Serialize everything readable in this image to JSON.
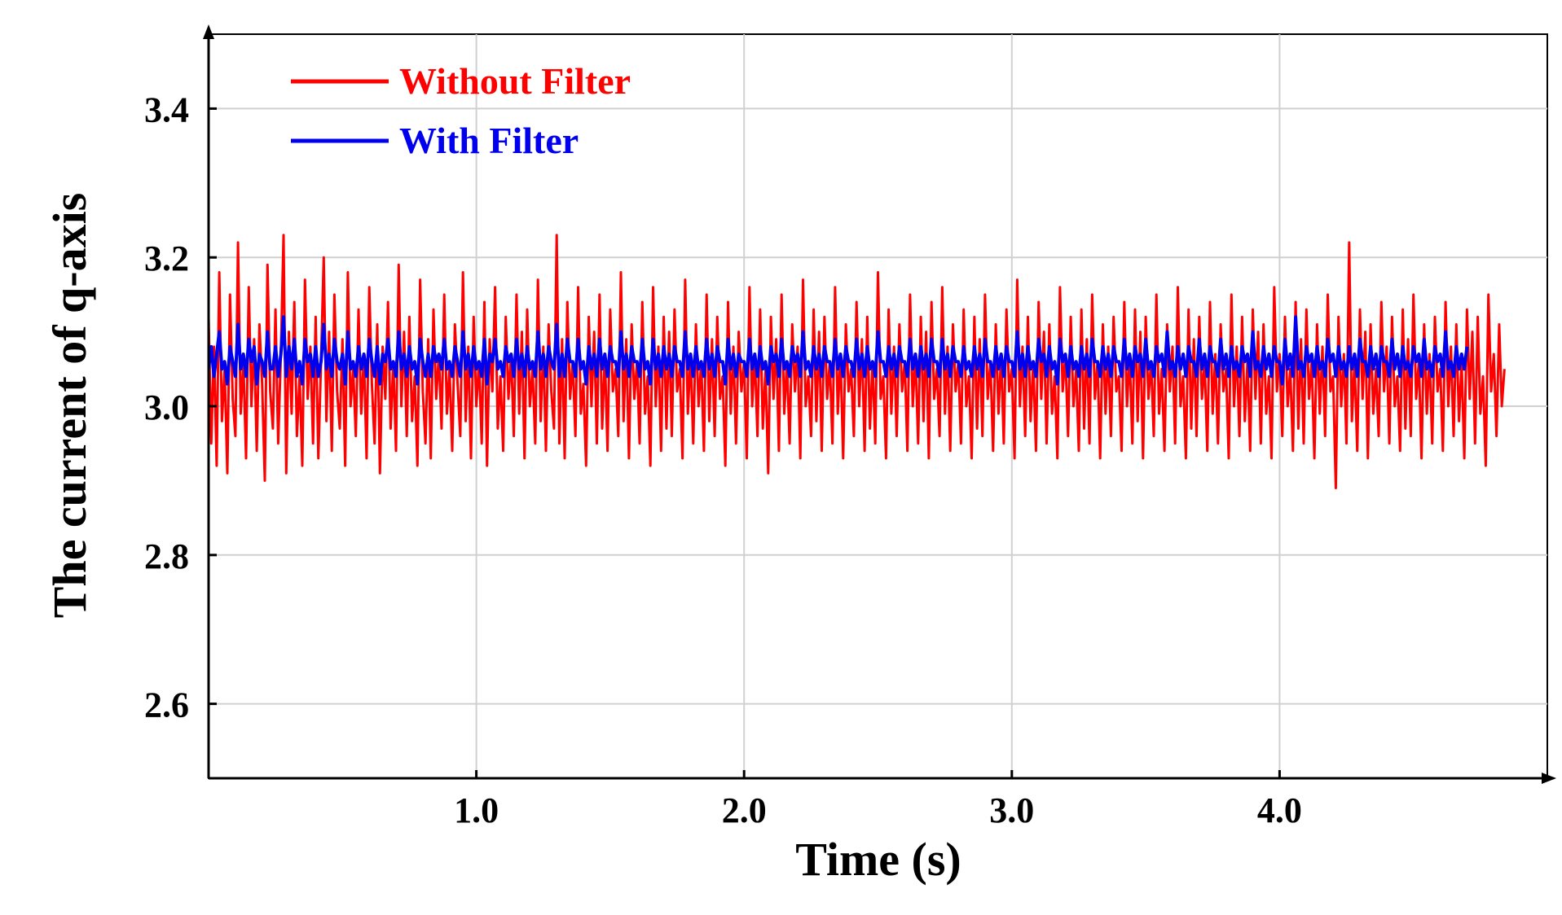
{
  "chart_data": {
    "type": "line",
    "title": "",
    "xlabel": "Time (s)",
    "ylabel": "The current of q-axis",
    "xlim": [
      0,
      5.0
    ],
    "ylim": [
      2.5,
      3.5
    ],
    "grid": true,
    "legend_position": "top-left",
    "x_ticks": [
      1.0,
      2.0,
      3.0,
      4.0
    ],
    "x_tick_labels": [
      "1.0",
      "2.0",
      "3.0",
      "4.0"
    ],
    "y_ticks": [
      2.6,
      2.8,
      3.0,
      3.2,
      3.4
    ],
    "y_tick_labels": [
      "2.6",
      "2.8",
      "3.0",
      "3.2",
      "3.4"
    ],
    "series": [
      {
        "name": "Without Filter",
        "color": "#ff0000",
        "x_start": 0,
        "x_step": 0.01,
        "y": [
          3.12,
          2.95,
          3.08,
          2.92,
          3.18,
          2.98,
          3.05,
          2.91,
          3.15,
          3.01,
          2.96,
          3.22,
          2.99,
          3.06,
          2.93,
          3.16,
          3.0,
          3.09,
          2.94,
          3.11,
          3.03,
          2.9,
          3.19,
          3.02,
          2.97,
          3.13,
          2.95,
          3.07,
          3.23,
          2.91,
          3.1,
          2.99,
          3.14,
          2.96,
          3.04,
          2.92,
          3.17,
          3.01,
          3.08,
          2.95,
          3.12,
          2.93,
          3.06,
          3.2,
          2.98,
          3.1,
          2.94,
          3.15,
          3.02,
          2.97,
          3.09,
          2.92,
          3.18,
          3.0,
          3.05,
          2.96,
          3.13,
          2.99,
          3.07,
          2.93,
          3.16,
          3.03,
          2.95,
          3.11,
          2.91,
          3.08,
          3.01,
          3.14,
          2.97,
          3.06,
          2.94,
          3.19,
          3.0,
          3.1,
          2.96,
          3.12,
          2.98,
          3.04,
          2.92,
          3.17,
          3.02,
          2.95,
          3.09,
          2.93,
          3.13,
          3.01,
          3.07,
          2.97,
          3.15,
          2.99,
          3.05,
          2.94,
          3.11,
          3.03,
          2.96,
          3.18,
          2.98,
          3.08,
          2.93,
          3.12,
          3.0,
          3.06,
          2.95,
          3.14,
          2.92,
          3.09,
          3.02,
          3.16,
          2.97,
          3.04,
          2.94,
          3.12,
          3.01,
          3.07,
          2.96,
          3.15,
          2.99,
          3.1,
          2.93,
          3.13,
          3.0,
          3.05,
          2.95,
          3.17,
          2.98,
          3.08,
          2.94,
          3.11,
          3.02,
          2.97,
          3.23,
          2.95,
          3.09,
          2.93,
          3.14,
          3.01,
          3.06,
          2.96,
          3.16,
          2.99,
          3.03,
          2.92,
          3.12,
          3.0,
          3.1,
          2.95,
          3.15,
          2.97,
          3.07,
          2.94,
          3.13,
          3.02,
          3.05,
          2.96,
          3.18,
          2.98,
          3.09,
          2.93,
          3.11,
          3.01,
          3.06,
          2.95,
          3.14,
          2.99,
          3.04,
          2.92,
          3.16,
          3.0,
          3.08,
          2.94,
          3.12,
          2.97,
          3.1,
          2.96,
          3.13,
          3.02,
          3.05,
          2.93,
          3.17,
          2.99,
          3.07,
          2.95,
          3.11,
          3.0,
          3.06,
          2.94,
          3.15,
          2.98,
          3.09,
          2.96,
          3.12,
          3.01,
          3.04,
          2.92,
          3.14,
          2.99,
          3.08,
          2.95,
          3.1,
          3.02,
          3.06,
          2.93,
          3.16,
          3.0,
          3.07,
          2.96,
          3.13,
          2.97,
          3.05,
          2.91,
          3.12,
          3.01,
          3.09,
          2.94,
          3.15,
          2.99,
          3.06,
          2.95,
          3.11,
          3.02,
          3.08,
          2.93,
          3.17,
          3.0,
          3.04,
          2.96,
          3.13,
          2.98,
          3.1,
          2.94,
          3.12,
          3.01,
          3.06,
          2.95,
          3.16,
          2.99,
          3.07,
          2.93,
          3.11,
          3.02,
          3.05,
          2.96,
          3.14,
          3.0,
          3.09,
          2.94,
          3.12,
          2.97,
          3.06,
          2.95,
          3.18,
          3.01,
          3.04,
          2.93,
          3.13,
          2.99,
          3.08,
          2.96,
          3.11,
          3.02,
          3.06,
          2.94,
          3.15,
          3.0,
          3.07,
          2.95,
          3.12,
          2.98,
          3.1,
          2.93,
          3.14,
          3.01,
          3.05,
          2.96,
          3.16,
          2.99,
          3.08,
          2.94,
          3.11,
          3.02,
          3.06,
          2.95,
          3.13,
          3.0,
          3.04,
          2.93,
          3.12,
          2.97,
          3.09,
          2.96,
          3.15,
          3.01,
          3.06,
          2.94,
          3.11,
          2.99,
          3.07,
          2.95,
          3.13,
          3.02,
          3.05,
          2.93,
          3.17,
          3.0,
          3.08,
          2.96,
          3.12,
          2.98,
          3.06,
          2.94,
          3.14,
          3.01,
          3.1,
          2.95,
          3.11,
          2.99,
          3.04,
          2.93,
          3.16,
          3.02,
          3.07,
          2.96,
          3.12,
          3.0,
          3.05,
          2.94,
          3.13,
          2.97,
          3.09,
          2.95,
          3.15,
          3.01,
          3.06,
          2.93,
          3.11,
          2.99,
          3.08,
          2.96,
          3.12,
          3.02,
          3.04,
          2.94,
          3.14,
          3.0,
          3.07,
          2.95,
          3.13,
          2.98,
          3.1,
          2.93,
          3.12,
          3.01,
          3.06,
          2.96,
          3.15,
          2.99,
          3.05,
          2.94,
          3.11,
          3.02,
          3.08,
          2.95,
          3.16,
          3.0,
          3.04,
          2.93,
          3.13,
          2.97,
          3.09,
          2.96,
          3.12,
          3.01,
          3.06,
          2.94,
          3.14,
          2.99,
          3.07,
          2.95,
          3.11,
          3.02,
          3.05,
          2.93,
          3.15,
          3.0,
          3.08,
          2.96,
          3.12,
          2.98,
          3.06,
          2.94,
          3.13,
          3.01,
          3.1,
          2.95,
          3.11,
          2.99,
          3.04,
          2.93,
          3.16,
          3.02,
          3.07,
          2.96,
          3.12,
          3.0,
          3.05,
          2.94,
          3.14,
          2.97,
          3.09,
          2.95,
          3.13,
          3.01,
          3.06,
          2.93,
          3.11,
          2.99,
          3.08,
          2.96,
          3.15,
          3.02,
          3.04,
          2.89,
          3.12,
          3.0,
          3.07,
          2.95,
          3.22,
          2.98,
          3.06,
          2.94,
          3.13,
          3.01,
          3.1,
          2.93,
          3.11,
          2.99,
          3.05,
          2.96,
          3.14,
          3.02,
          3.08,
          2.95,
          3.12,
          3.0,
          3.04,
          2.94,
          3.13,
          2.97,
          3.09,
          2.96,
          3.15,
          3.01,
          3.06,
          2.93,
          3.11,
          2.99,
          3.07,
          2.95,
          3.12,
          3.02,
          3.05,
          2.94,
          3.14,
          3.0,
          3.08,
          2.96,
          3.11,
          2.98,
          3.06,
          2.93,
          3.13,
          3.01,
          3.1,
          2.95,
          3.12,
          2.99,
          3.04,
          2.92,
          3.15,
          3.02,
          3.07,
          2.96,
          3.11,
          3.0,
          3.05
        ]
      },
      {
        "name": "With Filter",
        "color": "#0000ee",
        "x_start": 0,
        "x_step": 0.01,
        "y": [
          3.05,
          3.08,
          3.04,
          3.07,
          3.1,
          3.05,
          3.06,
          3.03,
          3.08,
          3.06,
          3.04,
          3.11,
          3.05,
          3.07,
          3.04,
          3.09,
          3.06,
          3.08,
          3.03,
          3.07,
          3.06,
          3.04,
          3.1,
          3.05,
          3.05,
          3.08,
          3.04,
          3.07,
          3.12,
          3.04,
          3.08,
          3.05,
          3.09,
          3.04,
          3.06,
          3.03,
          3.09,
          3.06,
          3.07,
          3.04,
          3.08,
          3.04,
          3.06,
          3.11,
          3.05,
          3.07,
          3.04,
          3.09,
          3.06,
          3.05,
          3.07,
          3.03,
          3.1,
          3.05,
          3.06,
          3.04,
          3.08,
          3.05,
          3.07,
          3.04,
          3.09,
          3.06,
          3.04,
          3.08,
          3.03,
          3.07,
          3.06,
          3.09,
          3.05,
          3.06,
          3.04,
          3.1,
          3.05,
          3.07,
          3.04,
          3.08,
          3.05,
          3.06,
          3.03,
          3.09,
          3.06,
          3.04,
          3.07,
          3.04,
          3.08,
          3.06,
          3.07,
          3.05,
          3.09,
          3.05,
          3.06,
          3.04,
          3.08,
          3.06,
          3.04,
          3.1,
          3.05,
          3.07,
          3.04,
          3.08,
          3.05,
          3.06,
          3.04,
          3.09,
          3.03,
          3.07,
          3.06,
          3.09,
          3.05,
          3.06,
          3.04,
          3.08,
          3.06,
          3.07,
          3.04,
          3.09,
          3.05,
          3.07,
          3.04,
          3.08,
          3.05,
          3.06,
          3.04,
          3.1,
          3.05,
          3.07,
          3.04,
          3.08,
          3.06,
          3.05,
          3.11,
          3.04,
          3.07,
          3.04,
          3.09,
          3.06,
          3.06,
          3.04,
          3.09,
          3.05,
          3.06,
          3.03,
          3.08,
          3.05,
          3.07,
          3.04,
          3.09,
          3.05,
          3.07,
          3.04,
          3.08,
          3.06,
          3.06,
          3.04,
          3.1,
          3.05,
          3.07,
          3.04,
          3.08,
          3.06,
          3.06,
          3.04,
          3.09,
          3.05,
          3.06,
          3.03,
          3.09,
          3.05,
          3.07,
          3.04,
          3.08,
          3.05,
          3.07,
          3.04,
          3.08,
          3.06,
          3.06,
          3.04,
          3.1,
          3.05,
          3.07,
          3.04,
          3.08,
          3.05,
          3.06,
          3.04,
          3.09,
          3.05,
          3.07,
          3.04,
          3.08,
          3.06,
          3.06,
          3.03,
          3.09,
          3.05,
          3.07,
          3.04,
          3.07,
          3.06,
          3.06,
          3.04,
          3.09,
          3.05,
          3.07,
          3.04,
          3.08,
          3.05,
          3.06,
          3.03,
          3.08,
          3.06,
          3.07,
          3.04,
          3.09,
          3.05,
          3.06,
          3.04,
          3.08,
          3.06,
          3.07,
          3.04,
          3.1,
          3.05,
          3.06,
          3.04,
          3.08,
          3.05,
          3.07,
          3.04,
          3.08,
          3.06,
          3.06,
          3.04,
          3.09,
          3.05,
          3.07,
          3.04,
          3.08,
          3.06,
          3.06,
          3.04,
          3.09,
          3.05,
          3.07,
          3.04,
          3.08,
          3.05,
          3.06,
          3.04,
          3.1,
          3.06,
          3.06,
          3.04,
          3.08,
          3.05,
          3.07,
          3.04,
          3.08,
          3.06,
          3.06,
          3.04,
          3.09,
          3.05,
          3.07,
          3.04,
          3.08,
          3.05,
          3.07,
          3.04,
          3.09,
          3.06,
          3.06,
          3.04,
          3.09,
          3.05,
          3.07,
          3.04,
          3.08,
          3.06,
          3.06,
          3.04,
          3.08,
          3.05,
          3.06,
          3.04,
          3.08,
          3.05,
          3.07,
          3.04,
          3.09,
          3.06,
          3.06,
          3.04,
          3.08,
          3.05,
          3.07,
          3.04,
          3.08,
          3.06,
          3.06,
          3.04,
          3.1,
          3.05,
          3.07,
          3.04,
          3.08,
          3.05,
          3.06,
          3.04,
          3.09,
          3.06,
          3.07,
          3.04,
          3.08,
          3.05,
          3.06,
          3.03,
          3.09,
          3.06,
          3.07,
          3.04,
          3.08,
          3.05,
          3.06,
          3.04,
          3.08,
          3.05,
          3.07,
          3.04,
          3.09,
          3.06,
          3.06,
          3.04,
          3.08,
          3.05,
          3.07,
          3.04,
          3.08,
          3.06,
          3.06,
          3.04,
          3.09,
          3.05,
          3.07,
          3.04,
          3.08,
          3.06,
          3.07,
          3.04,
          3.09,
          3.05,
          3.06,
          3.04,
          3.08,
          3.06,
          3.07,
          3.04,
          3.1,
          3.05,
          3.06,
          3.04,
          3.08,
          3.05,
          3.07,
          3.04,
          3.08,
          3.06,
          3.06,
          3.04,
          3.09,
          3.05,
          3.07,
          3.04,
          3.08,
          3.06,
          3.06,
          3.04,
          3.09,
          3.05,
          3.07,
          3.04,
          3.08,
          3.05,
          3.06,
          3.04,
          3.08,
          3.06,
          3.07,
          3.04,
          3.1,
          3.05,
          3.06,
          3.04,
          3.08,
          3.05,
          3.07,
          3.04,
          3.08,
          3.06,
          3.06,
          3.03,
          3.09,
          3.05,
          3.07,
          3.04,
          3.12,
          3.05,
          3.06,
          3.04,
          3.08,
          3.06,
          3.07,
          3.04,
          3.08,
          3.05,
          3.06,
          3.04,
          3.09,
          3.06,
          3.07,
          3.04,
          3.08,
          3.05,
          3.06,
          3.04,
          3.08,
          3.05,
          3.07,
          3.04,
          3.09,
          3.06,
          3.06,
          3.04,
          3.08,
          3.05,
          3.07,
          3.04,
          3.08,
          3.06,
          3.06,
          3.04,
          3.09,
          3.05,
          3.07,
          3.04,
          3.08,
          3.05,
          3.06,
          3.04,
          3.08,
          3.06,
          3.07,
          3.04,
          3.09,
          3.05,
          3.06,
          3.04,
          3.08,
          3.06,
          3.07,
          3.04,
          3.1,
          3.05,
          3.06,
          3.04,
          3.08,
          3.05,
          3.07,
          3.05,
          3.08
        ]
      }
    ]
  }
}
